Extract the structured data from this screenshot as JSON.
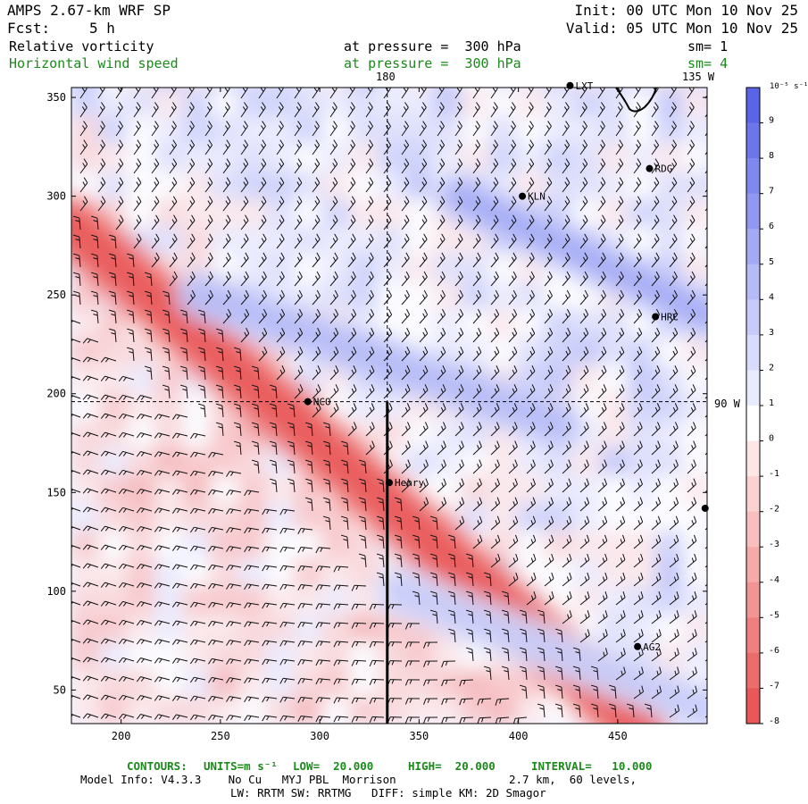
{
  "header": {
    "model": "AMPS 2.67-km WRF SP",
    "fcst_label": "Fcst:",
    "fcst_value": "5 h",
    "init": "Init: 00 UTC Mon 10 Nov 25",
    "valid": "Valid: 05 UTC Mon 10 Nov 25",
    "field1": "Relative vorticity",
    "field1_level": "at pressure =  300 hPa",
    "field1_sm": "sm= 1",
    "field2": "Horizontal wind speed",
    "field2_level": "at pressure =  300 hPa",
    "field2_sm": "sm= 4"
  },
  "map_labels": {
    "lon_180": "180",
    "lon_135w": "135 W",
    "lon_90w": "90 W"
  },
  "colorbar": {
    "unit_label": "10⁻⁵ s⁻¹",
    "ticks": [
      "9",
      "8",
      "7",
      "6",
      "5",
      "4",
      "3",
      "2",
      "1",
      "0",
      "-1",
      "-2",
      "-3",
      "-4",
      "-5",
      "-6",
      "-7",
      "-8"
    ],
    "colors": [
      "#5a64e6",
      "#6c76ea",
      "#7e88ee",
      "#9098f1",
      "#a3aaf4",
      "#b5bbf7",
      "#c6cbf9",
      "#d8dbfb",
      "#e8eafd",
      "#ffffff",
      "#fde6e6",
      "#fbd2d2",
      "#f9bebe",
      "#f6a9a9",
      "#f39494",
      "#f07f7f",
      "#ec6b6b",
      "#e95858"
    ]
  },
  "stations": [
    {
      "name": "LXT",
      "x": 426,
      "y": 356
    },
    {
      "name": "RDG",
      "x": 466,
      "y": 314
    },
    {
      "name": "KLN",
      "x": 402,
      "y": 300
    },
    {
      "name": "HRC",
      "x": 469,
      "y": 239
    },
    {
      "name": "NCO",
      "x": 294,
      "y": 196
    },
    {
      "name": "Henry",
      "x": 335,
      "y": 155
    },
    {
      "name": "AG2",
      "x": 460,
      "y": 72
    },
    {
      "name": "",
      "x": 494,
      "y": 142
    }
  ],
  "footer": {
    "contours_label": "CONTOURS:",
    "units_label": "UNITS=m s⁻¹",
    "low": "LOW=  20.000",
    "high": "HIGH=  20.000",
    "interval": "INTERVAL=   10.000",
    "model_info": "Model Info: V4.3.3    No Cu   MYJ PBL  Morrison",
    "grid_info": "2.7 km,  60 levels,",
    "physics_info": "LW: RRTM SW: RRTMG   DIFF: simple KM: 2D Smagor"
  },
  "chart_data": {
    "type": "heatmap",
    "title": "Relative vorticity and horizontal wind speed at 300 hPa",
    "x_ticks": [
      200,
      250,
      300,
      350,
      400,
      450
    ],
    "y_ticks": [
      50,
      100,
      150,
      200,
      250,
      300,
      350
    ],
    "xlim": [
      175,
      495
    ],
    "ylim": [
      33,
      355
    ],
    "crosshair": {
      "x": 334,
      "y": 196
    },
    "cross_section": {
      "x": 334,
      "y_from": 33,
      "y_to": 196
    },
    "vorticity_range": [
      -8,
      9
    ],
    "features": [
      {
        "name": "negative vorticity band",
        "from": [
          175,
          285
        ],
        "to": [
          460,
          33
        ],
        "value": -8
      },
      {
        "name": "positive vorticity band",
        "from": [
          240,
          250
        ],
        "to": [
          420,
          185
        ],
        "value": 4
      },
      {
        "name": "positive vorticity band",
        "from": [
          370,
          300
        ],
        "to": [
          495,
          240
        ],
        "value": 5
      },
      {
        "name": "positive vorticity band",
        "from": [
          340,
          100
        ],
        "to": [
          495,
          40
        ],
        "value": 3
      }
    ]
  }
}
